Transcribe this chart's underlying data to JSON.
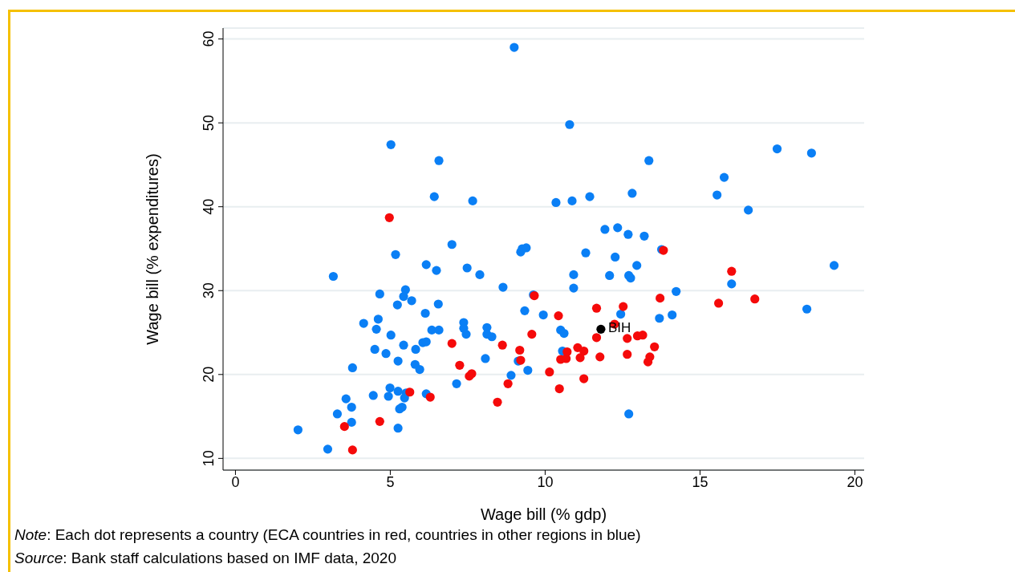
{
  "chart_data": {
    "type": "scatter",
    "xlabel": "Wage bill (% gdp)",
    "ylabel": "Wage bill (% expenditures)",
    "xlim": [
      -0.4,
      20.3
    ],
    "xticks": [
      0,
      5,
      10,
      15,
      20
    ],
    "ylim": [
      8.6,
      61.3
    ],
    "yticks": [
      10,
      20,
      30,
      40,
      50,
      60
    ],
    "grid": "y",
    "marker": "circle",
    "series": [
      {
        "color": "#0a7ff5",
        "x": [
          2.02,
          2.98,
          3.16,
          3.29,
          3.57,
          3.75,
          3.75,
          3.78,
          4.14,
          4.45,
          4.5,
          4.55,
          4.61,
          4.66,
          4.86,
          4.94,
          4.99,
          5.02,
          5.02,
          5.17,
          5.23,
          5.25,
          5.25,
          5.25,
          5.3,
          5.38,
          5.43,
          5.43,
          5.46,
          5.49,
          5.51,
          5.69,
          5.8,
          5.82,
          5.95,
          6.05,
          6.16,
          6.13,
          6.16,
          6.16,
          6.34,
          6.42,
          6.49,
          6.55,
          6.57,
          6.57,
          6.99,
          7.14,
          7.37,
          7.37,
          7.45,
          7.48,
          7.66,
          7.89,
          8.07,
          8.12,
          8.12,
          8.28,
          8.64,
          8.9,
          9.0,
          9.13,
          9.21,
          9.26,
          9.39,
          9.34,
          9.44,
          9.62,
          9.94,
          10.35,
          10.5,
          10.56,
          10.61,
          10.79,
          10.87,
          10.92,
          10.92,
          11.31,
          11.44,
          11.93,
          12.08,
          12.26,
          12.34,
          12.44,
          12.68,
          12.7,
          12.76,
          12.7,
          12.81,
          12.96,
          13.2,
          13.35,
          13.69,
          13.76,
          14.1,
          14.23,
          15.55,
          15.78,
          16.02,
          16.56,
          17.49,
          18.45,
          18.6,
          19.33
        ],
        "values": [
          13.4,
          11.1,
          31.7,
          15.3,
          17.1,
          16.1,
          14.3,
          20.8,
          26.1,
          17.5,
          23.0,
          25.4,
          26.6,
          29.6,
          22.5,
          17.4,
          18.4,
          24.7,
          47.4,
          34.3,
          28.3,
          21.6,
          18.0,
          13.6,
          15.9,
          16.1,
          23.5,
          29.3,
          17.2,
          30.1,
          17.8,
          28.8,
          21.2,
          23.0,
          20.6,
          23.8,
          23.9,
          27.3,
          33.1,
          17.7,
          25.3,
          41.2,
          32.4,
          28.4,
          25.3,
          45.5,
          35.5,
          18.9,
          26.2,
          25.5,
          24.8,
          32.7,
          40.7,
          31.9,
          21.9,
          25.6,
          24.8,
          24.5,
          30.4,
          19.9,
          59.0,
          21.6,
          34.6,
          35.0,
          35.1,
          27.6,
          20.5,
          29.5,
          27.1,
          40.5,
          25.3,
          22.8,
          24.9,
          49.8,
          40.7,
          31.9,
          30.3,
          34.5,
          41.2,
          37.3,
          31.8,
          34.0,
          37.5,
          27.2,
          36.7,
          31.8,
          31.5,
          15.3,
          41.6,
          33.0,
          36.5,
          45.5,
          26.7,
          34.9,
          27.1,
          29.9,
          41.4,
          43.5,
          30.8,
          39.6,
          46.9,
          27.8,
          46.4,
          33.0
        ]
      },
      {
        "color": "#f50a0a",
        "x": [
          4.97,
          3.52,
          3.78,
          4.66,
          5.63,
          6.29,
          6.99,
          7.24,
          7.55,
          7.63,
          8.46,
          8.62,
          8.8,
          9.18,
          9.21,
          9.57,
          9.65,
          10.14,
          10.43,
          10.46,
          10.5,
          10.68,
          10.71,
          11.05,
          11.13,
          11.25,
          11.25,
          11.66,
          11.66,
          11.77,
          12.24,
          12.52,
          12.65,
          12.65,
          12.98,
          13.15,
          13.32,
          13.38,
          13.53,
          13.71,
          13.82,
          15.6,
          16.02,
          16.77
        ],
        "values": [
          38.7,
          13.8,
          11.0,
          14.4,
          17.9,
          17.3,
          23.7,
          21.1,
          19.8,
          20.1,
          16.7,
          23.5,
          18.9,
          22.9,
          21.7,
          24.8,
          29.4,
          20.3,
          27.0,
          18.3,
          21.8,
          21.9,
          22.7,
          23.2,
          22.0,
          22.8,
          19.5,
          27.9,
          24.4,
          22.1,
          26.0,
          28.1,
          24.3,
          22.4,
          24.6,
          24.7,
          21.5,
          22.1,
          23.3,
          29.1,
          34.8,
          28.5,
          32.3,
          29.0
        ]
      },
      {
        "color": "#000000",
        "x": [
          11.8
        ],
        "values": [
          25.4
        ]
      }
    ],
    "annotations": [
      {
        "text": "BIH",
        "x": 11.8,
        "y": 25.4
      },
      "Note: Each dot represents a country (ECA countries in red, countries in other regions in blue)",
      "Source: Bank staff calculations based on IMF data, 2020"
    ]
  }
}
